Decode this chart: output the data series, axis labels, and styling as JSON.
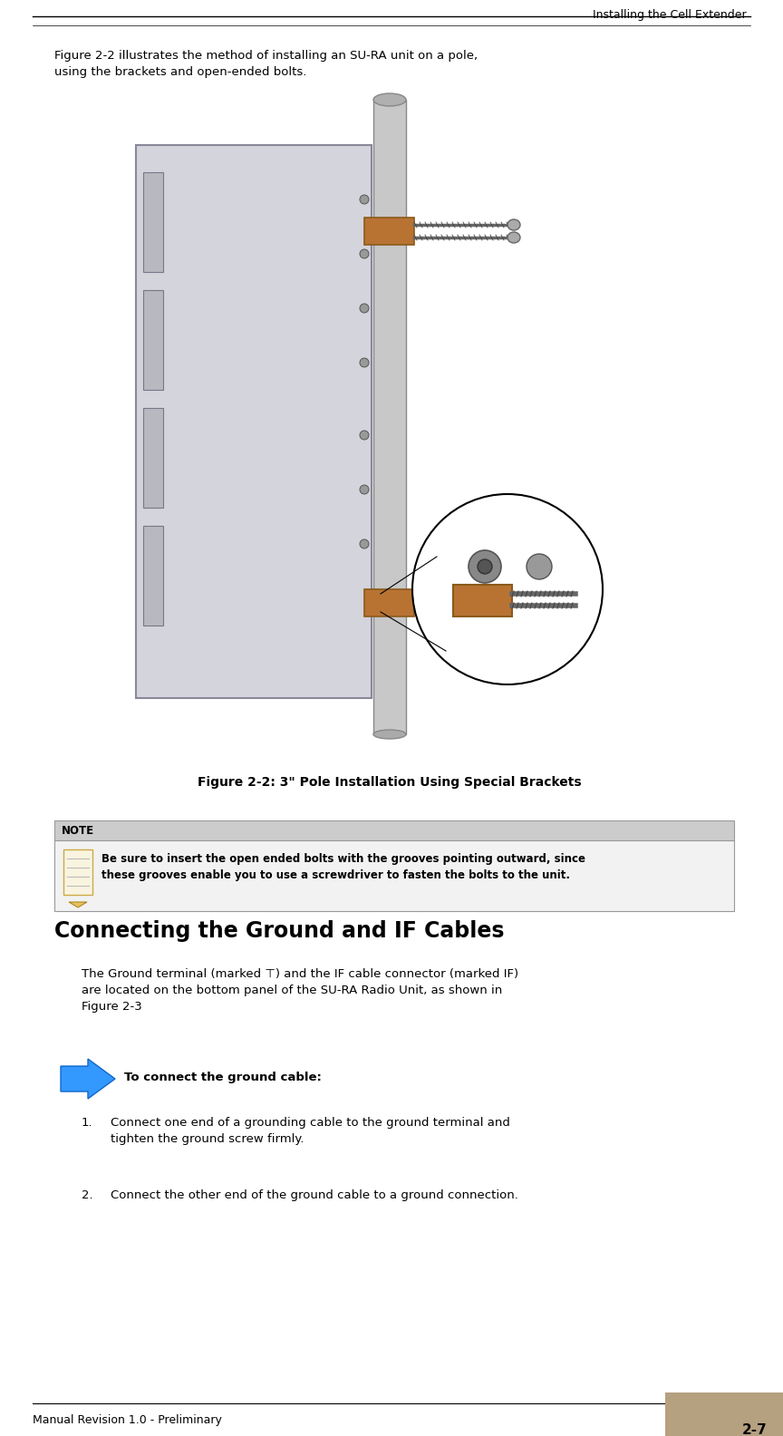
{
  "page_width": 8.64,
  "page_height": 15.84,
  "bg_color": "#ffffff",
  "header_text": "Installing the Cell Extender",
  "intro_text": "Figure 2-2 illustrates the method of installing an SU-RA unit on a pole,\nusing the brackets and open-ended bolts.",
  "figure_caption": "Figure 2-2: 3\" Pole Installation Using Special Brackets",
  "note_header": "NOTE",
  "note_body": "Be sure to insert the open ended bolts with the grooves pointing outward, since\nthese grooves enable you to use a screwdriver to fasten the bolts to the unit.",
  "section_title": "Connecting the Ground and IF Cables",
  "body_text1": "The Ground terminal (marked ⊤) and the IF cable connector (marked IF)\nare located on the bottom panel of the SU-RA Radio Unit, as shown in\nFigure 2-3",
  "procedure_header": "To connect the ground cable:",
  "step1": "Connect one end of a grounding cable to the ground terminal and\ntighten the ground screw firmly.",
  "step2": "Connect the other end of the ground cable to a ground connection.",
  "footer_left": "Manual Revision 1.0 - Preliminary",
  "footer_right": "2-7",
  "note_bg": "#e8e8e8",
  "note_header_bg": "#d0d0d0",
  "arrow_color": "#3399ff",
  "header_line_color": "#000000",
  "footer_line_color": "#000000",
  "tan_color": "#b5a080",
  "bracket_color": "#b87333",
  "bracket_dark": "#8b5a1a"
}
